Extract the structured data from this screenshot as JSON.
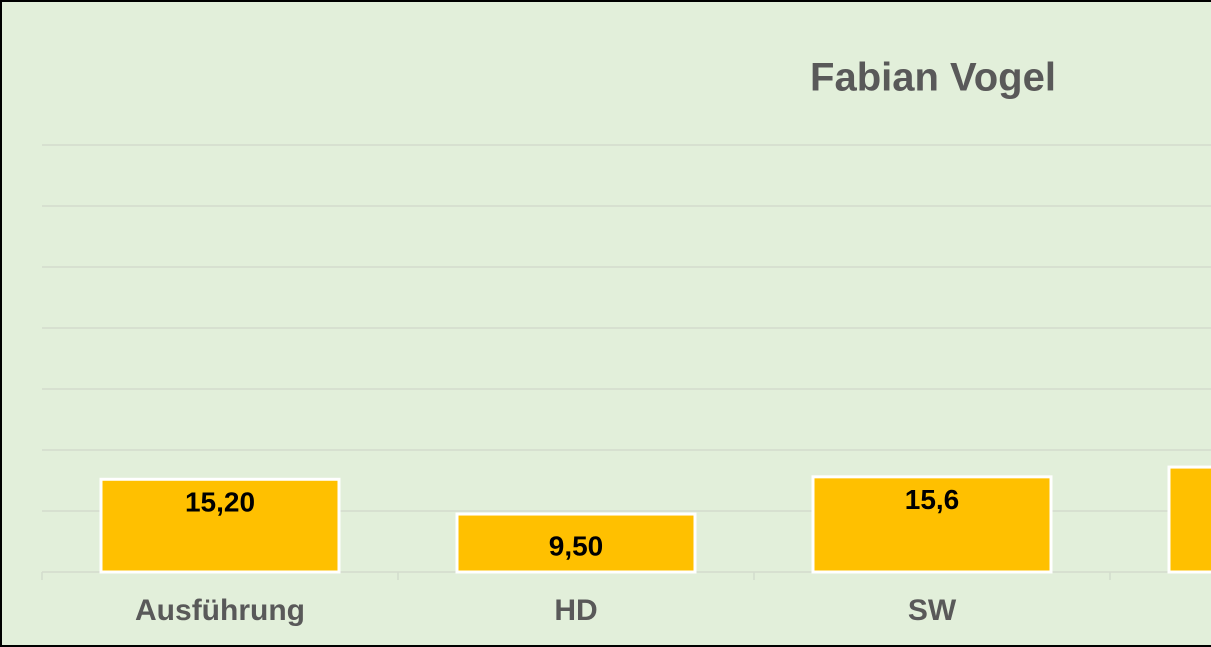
{
  "chart_data": {
    "type": "bar",
    "title": "Fabian Vogel",
    "categories": [
      "Ausführung",
      "HD",
      "SW",
      null
    ],
    "values": [
      15.2,
      9.5,
      15.6,
      17.2
    ],
    "value_labels": [
      "15,20",
      "9,50",
      "15,6",
      null
    ],
    "color": "#ffc000",
    "ylim": [
      0,
      70
    ],
    "yticks": [
      0,
      10,
      20,
      30,
      40,
      50,
      60,
      70
    ],
    "grid": true
  }
}
